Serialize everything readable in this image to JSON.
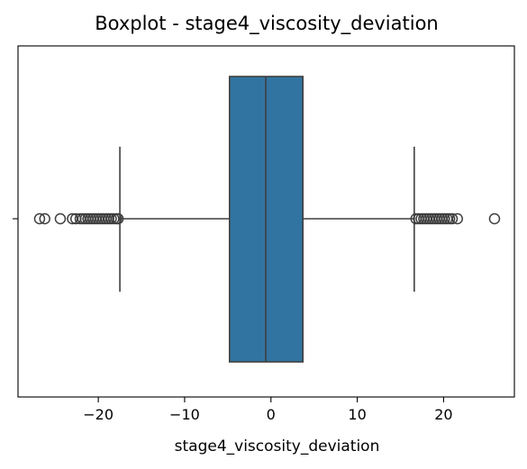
{
  "chart_data": {
    "type": "boxplot",
    "orientation": "horizontal",
    "title": "Boxplot - stage4_viscosity_deviation",
    "xlabel": "stage4_viscosity_deviation",
    "ylabel": "",
    "xlim": [
      -29.3,
      28.2
    ],
    "xticks": [
      -20,
      -10,
      0,
      10,
      20
    ],
    "xtick_labels": [
      "−20",
      "−10",
      "0",
      "10",
      "20"
    ],
    "grid": false,
    "box": {
      "color": "#3274a1",
      "edge_color": "#3f3f3f",
      "whisker_low": -17.5,
      "q1": -4.8,
      "median": -0.6,
      "q3": 3.7,
      "whisker_high": 16.6
    },
    "outliers": [
      -26.8,
      -26.2,
      -24.4,
      -23.0,
      -22.6,
      -22.1,
      -21.8,
      -21.5,
      -21.2,
      -20.9,
      -20.6,
      -20.3,
      -20.0,
      -19.7,
      -19.4,
      -19.1,
      -18.8,
      -18.5,
      -18.2,
      -17.9,
      -17.7,
      16.8,
      17.1,
      17.4,
      17.7,
      18.0,
      18.3,
      18.6,
      18.9,
      19.2,
      19.5,
      19.8,
      20.1,
      20.4,
      20.7,
      21.0,
      21.6,
      25.9
    ]
  }
}
